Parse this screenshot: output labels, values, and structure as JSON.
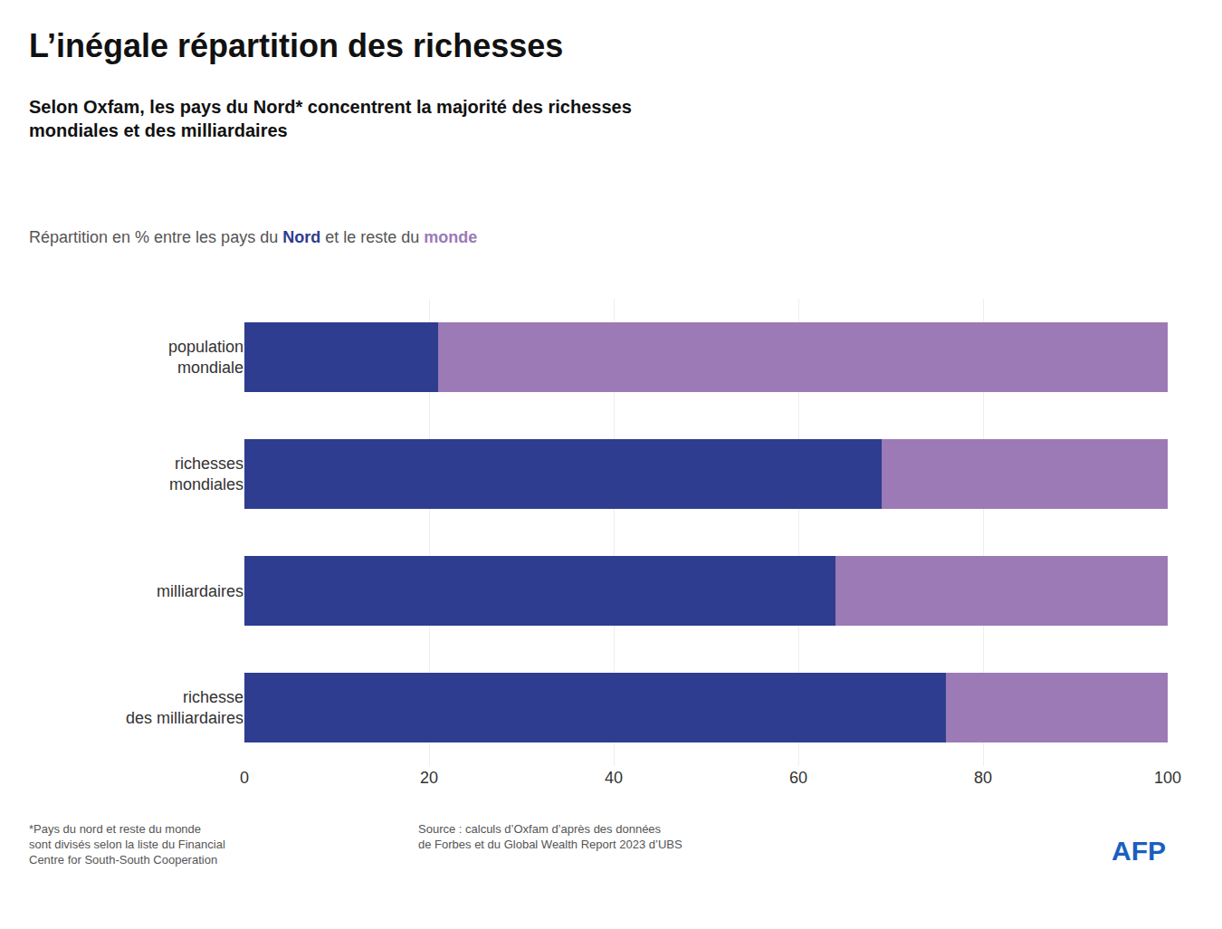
{
  "chart_data": {
    "type": "bar",
    "orientation": "horizontal",
    "stacked": true,
    "title": "L’inégale répartition des richesses",
    "subtitle": "Selon Oxfam, les pays du Nord* concentrent la majorité des richesses\nmondiales et des milliardaires",
    "legend_text": [
      "Répartition en % entre les pays du ",
      " et le reste du "
    ],
    "categories": [
      "population\nmondiale",
      "richesses\nmondiales",
      "milliardaires",
      "richesse\ndes milliardaires"
    ],
    "series": [
      {
        "name": "Nord",
        "color": "#2e3d8f",
        "values": [
          21,
          69,
          64,
          76
        ]
      },
      {
        "name": "monde",
        "color": "#9b7ab5",
        "values": [
          79,
          31,
          36,
          24
        ]
      }
    ],
    "xlim": [
      0,
      100
    ],
    "xticks": [
      0,
      20,
      40,
      60,
      80,
      100
    ],
    "grid": true,
    "annotations": [
      {
        "text": "*Pays du nord et reste du monde\nsont divisés selon la liste du Financial\nCentre for South-South Cooperation"
      },
      {
        "text": "Source : calculs d’Oxfam d’après des données\nde Forbes et du Global Wealth Report 2023 d’UBS"
      },
      {
        "text": "AFP",
        "color": "#1a5fbf"
      }
    ]
  }
}
